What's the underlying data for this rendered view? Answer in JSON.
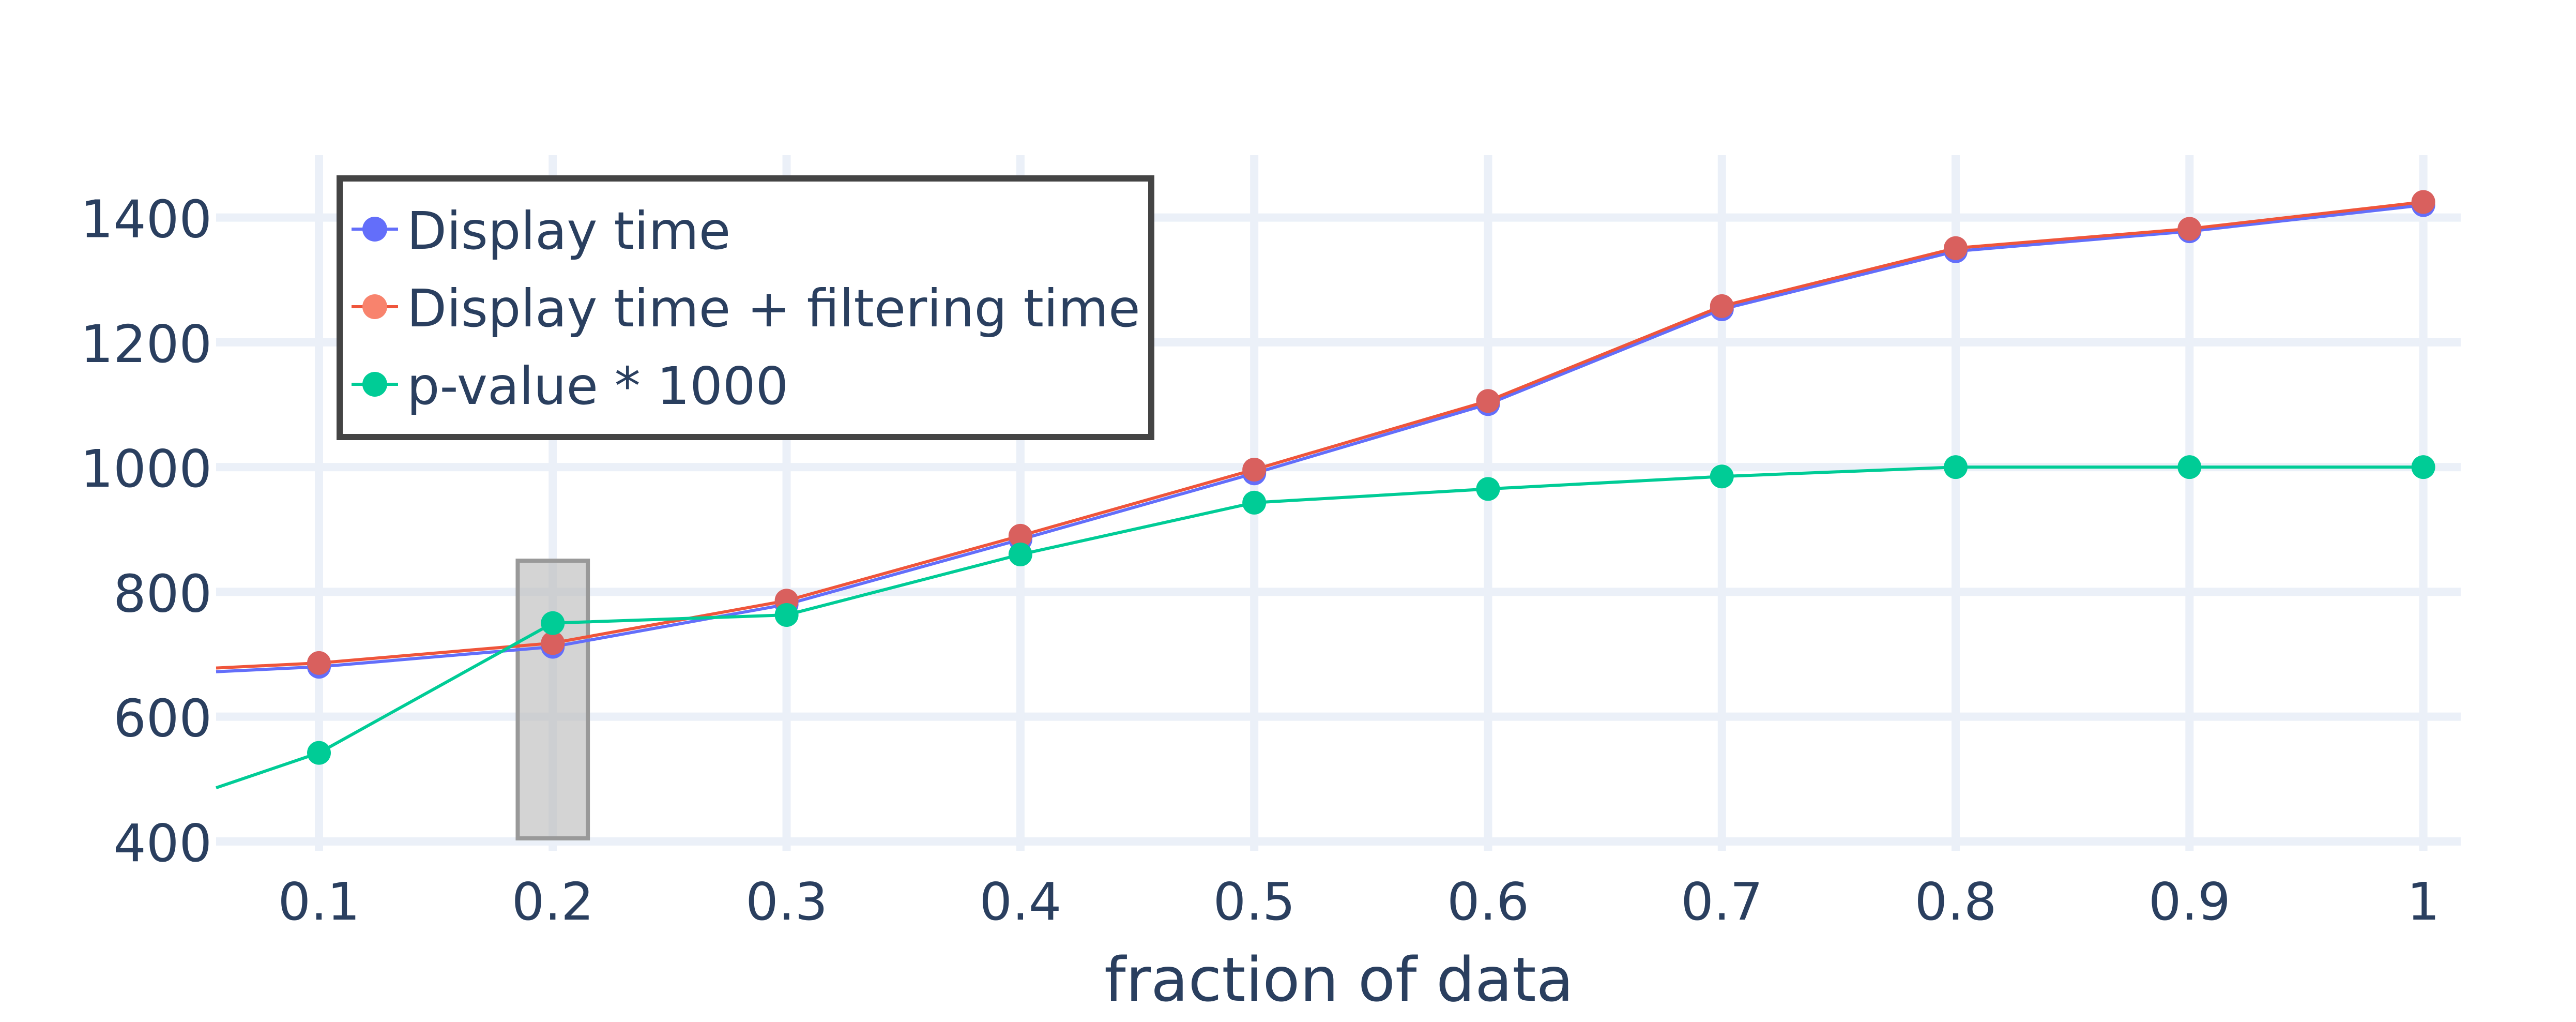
{
  "chart_data": {
    "type": "line",
    "xlabel": "fraction of data",
    "ylabel": "",
    "x": [
      0.1,
      0.2,
      0.3,
      0.4,
      0.5,
      0.6,
      0.7,
      0.8,
      0.9,
      1.0
    ],
    "xlim": [
      0.056,
      1.016
    ],
    "ylim": [
      385,
      1500
    ],
    "x_tick_labels": [
      "0.1",
      "0.2",
      "0.3",
      "0.4",
      "0.5",
      "0.6",
      "0.7",
      "0.8",
      "0.9",
      "1"
    ],
    "y_tick_labels": [
      "400",
      "600",
      "800",
      "1000",
      "1200",
      "1400"
    ],
    "y_tick_values": [
      400,
      600,
      800,
      1000,
      1200,
      1400
    ],
    "grid": true,
    "legend_position": "top-left",
    "series": [
      {
        "name": "Display time",
        "color": "#636efa",
        "values": [
          680,
          712,
          780,
          884,
          990,
          1101,
          1253,
          1346,
          1378,
          1420
        ],
        "extends_left_to": 672
      },
      {
        "name": "Display time  + filtering time",
        "color": "#ef553b",
        "marker_color": "#d9605e",
        "legend_marker_color": "#f8836d",
        "values": [
          686,
          718,
          786,
          890,
          996,
          1106,
          1258,
          1351,
          1382,
          1425
        ],
        "extends_left_to": 678
      },
      {
        "name": "p-value * 1000",
        "color": "#00cc96",
        "values": [
          542,
          750,
          763,
          860,
          943,
          965,
          985,
          1000,
          1000,
          1000
        ],
        "extends_left_to": 486
      }
    ],
    "highlight_box": {
      "x_range": [
        0.185,
        0.215
      ],
      "y_range": [
        405,
        850
      ],
      "fill": "#bdbdbd",
      "stroke": "#999999"
    }
  }
}
